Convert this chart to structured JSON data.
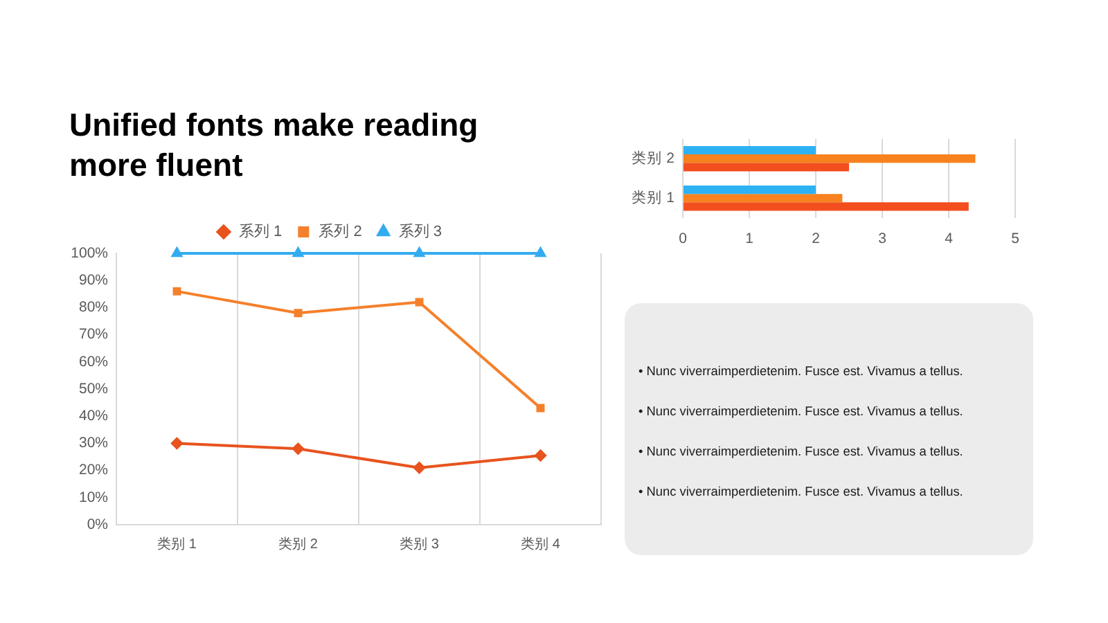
{
  "chart_data": [
    {
      "type": "line",
      "title": "Unified fonts make reading more fluent",
      "categories": [
        "类别 1",
        "类别 2",
        "类别 3",
        "类别 4"
      ],
      "series": [
        {
          "name": "系列 1",
          "color": "#e8531e",
          "marker": "diamond",
          "values": [
            30,
            28,
            21,
            25.5
          ]
        },
        {
          "name": "系列 2",
          "color": "#f5802b",
          "marker": "square",
          "values": [
            86,
            78,
            82,
            43
          ]
        },
        {
          "name": "系列 3",
          "color": "#33abf0",
          "marker": "triangle",
          "values": [
            100,
            100,
            100,
            100
          ]
        }
      ],
      "ylim": [
        0,
        100
      ],
      "yticks": [
        {
          "value": 0,
          "label": "0%"
        },
        {
          "value": 10,
          "label": "10%"
        },
        {
          "value": 20,
          "label": "20%"
        },
        {
          "value": 30,
          "label": "30%"
        },
        {
          "value": 40,
          "label": "40%"
        },
        {
          "value": 50,
          "label": "50%"
        },
        {
          "value": 60,
          "label": "60%"
        },
        {
          "value": 70,
          "label": "70%"
        },
        {
          "value": 80,
          "label": "80%"
        },
        {
          "value": 90,
          "label": "90%"
        },
        {
          "value": 100,
          "label": "100%"
        }
      ],
      "grid": "x",
      "legend": "top"
    },
    {
      "type": "bar",
      "orientation": "horizontal",
      "categories": [
        "类别 2",
        "类别 1"
      ],
      "series": [
        {
          "color": "#2eb2f4",
          "values": [
            2,
            2
          ]
        },
        {
          "color": "#f7821f",
          "values": [
            4.4,
            2.4
          ]
        },
        {
          "color": "#f24e1e",
          "values": [
            2.5,
            4.3
          ]
        }
      ],
      "xlim": [
        0,
        5
      ],
      "xticks": [
        0,
        1,
        2,
        3,
        4,
        5
      ],
      "grid": "x"
    },
    {
      "type": "other",
      "annotations": [
        "• Nunc viverraimperdietenim. Fusce est. Vivamus a tellus.",
        "• Nunc viverraimperdietenim. Fusce est. Vivamus a tellus.",
        "• Nunc viverraimperdietenim. Fusce est. Vivamus a tellus.",
        "• Nunc viverraimperdietenim. Fusce est. Vivamus a tellus."
      ]
    }
  ]
}
